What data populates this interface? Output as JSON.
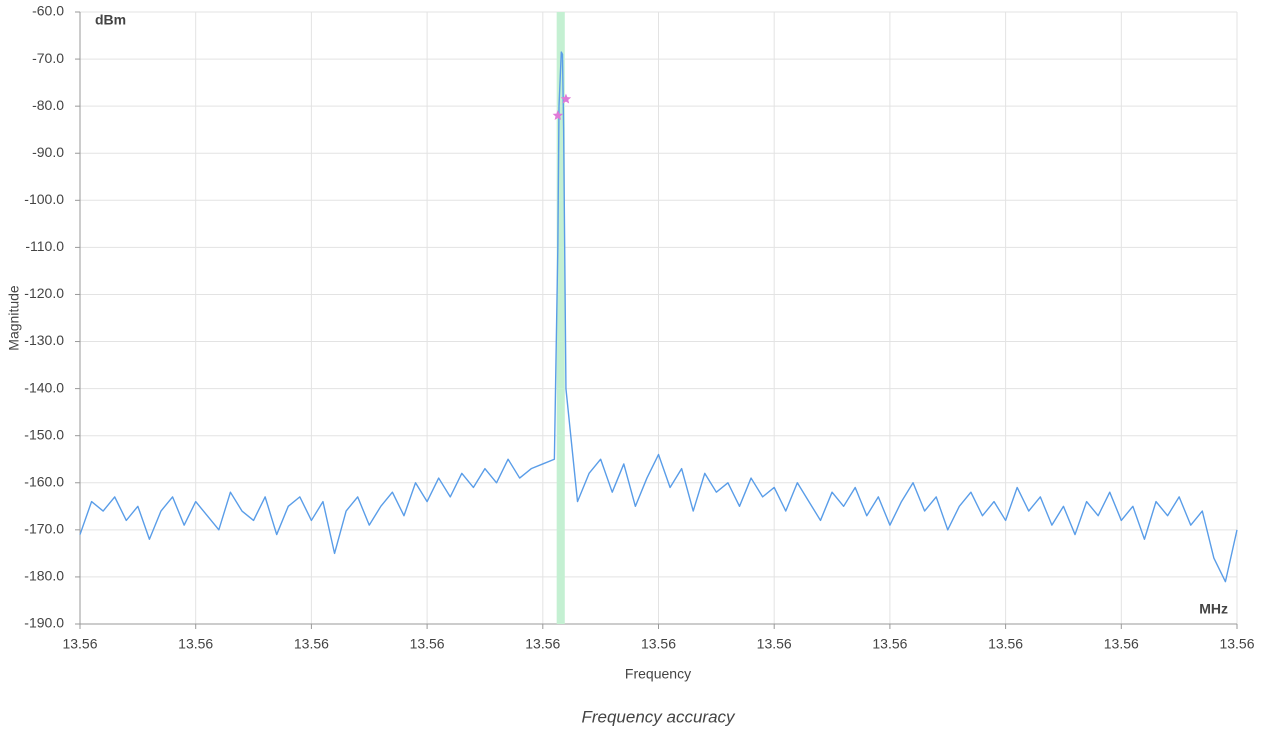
{
  "chart_data": {
    "type": "line",
    "title": "Frequency accuracy",
    "x_label": "Frequency",
    "y_label": "Magnitude",
    "x_unit": "MHz",
    "y_unit": "dBm",
    "color": "#5a9de8",
    "grid": true,
    "xlim": [
      13.5595,
      13.5605
    ],
    "ylim": [
      -190,
      -60
    ],
    "xticks": [
      {
        "value": 13.5595,
        "label": "13.56"
      },
      {
        "value": 13.5596,
        "label": "13.56"
      },
      {
        "value": 13.5597,
        "label": "13.56"
      },
      {
        "value": 13.5598,
        "label": "13.56"
      },
      {
        "value": 13.5599,
        "label": "13.56"
      },
      {
        "value": 13.56,
        "label": "13.56"
      },
      {
        "value": 13.5601,
        "label": "13.56"
      },
      {
        "value": 13.5602,
        "label": "13.56"
      },
      {
        "value": 13.5603,
        "label": "13.56"
      },
      {
        "value": 13.5604,
        "label": "13.56"
      },
      {
        "value": 13.5605,
        "label": "13.56"
      }
    ],
    "yticks": [
      {
        "value": -190,
        "label": "-190.0"
      },
      {
        "value": -180,
        "label": "-180.0"
      },
      {
        "value": -170,
        "label": "-170.0"
      },
      {
        "value": -160,
        "label": "-160.0"
      },
      {
        "value": -150,
        "label": "-150.0"
      },
      {
        "value": -140,
        "label": "-140.0"
      },
      {
        "value": -130,
        "label": "-130.0"
      },
      {
        "value": -120,
        "label": "-120.0"
      },
      {
        "value": -110,
        "label": "-110.0"
      },
      {
        "value": -100,
        "label": "-100.0"
      },
      {
        "value": -90,
        "label": "-90.0"
      },
      {
        "value": -80,
        "label": "-80.0"
      },
      {
        "value": -70,
        "label": "-70.0"
      },
      {
        "value": -60,
        "label": "-60.0"
      }
    ],
    "x": [
      13.5595,
      13.55951,
      13.55952,
      13.55953,
      13.55954,
      13.55955,
      13.55956,
      13.55957,
      13.55958,
      13.55959,
      13.5596,
      13.55961,
      13.55962,
      13.55963,
      13.55964,
      13.55965,
      13.55966,
      13.55967,
      13.55968,
      13.55969,
      13.5597,
      13.55971,
      13.55972,
      13.55973,
      13.55974,
      13.55975,
      13.55976,
      13.55977,
      13.55978,
      13.55979,
      13.5598,
      13.55981,
      13.55982,
      13.55983,
      13.55984,
      13.55985,
      13.55986,
      13.55987,
      13.55988,
      13.55989,
      13.5599,
      13.55991,
      13.559913,
      13.559914,
      13.559916,
      13.559917,
      13.559918,
      13.55992,
      13.55993,
      13.55994,
      13.55995,
      13.55996,
      13.55997,
      13.55998,
      13.55999,
      13.56,
      13.56001,
      13.56002,
      13.56003,
      13.56004,
      13.56005,
      13.56006,
      13.56007,
      13.56008,
      13.56009,
      13.5601,
      13.56011,
      13.56012,
      13.56013,
      13.56014,
      13.56015,
      13.56016,
      13.56017,
      13.56018,
      13.56019,
      13.5602,
      13.56021,
      13.56022,
      13.56023,
      13.56024,
      13.56025,
      13.56026,
      13.56027,
      13.56028,
      13.56029,
      13.5603,
      13.56031,
      13.56032,
      13.56033,
      13.56034,
      13.56035,
      13.56036,
      13.56037,
      13.56038,
      13.56039,
      13.5604,
      13.56041,
      13.56042,
      13.56043,
      13.56044,
      13.56045,
      13.56046,
      13.56047,
      13.56048,
      13.56049,
      13.5605
    ],
    "values": [
      -171,
      -164,
      -166,
      -163,
      -168,
      -165,
      -172,
      -166,
      -163,
      -169,
      -164,
      -167,
      -170,
      -162,
      -166,
      -168,
      -163,
      -171,
      -165,
      -163,
      -168,
      -164,
      -175,
      -166,
      -163,
      -169,
      -165,
      -162,
      -167,
      -160,
      -164,
      -159,
      -163,
      -158,
      -161,
      -157,
      -160,
      -155,
      -159,
      -157,
      -156,
      -155,
      -110,
      -80,
      -68.5,
      -69,
      -85,
      -140,
      -164,
      -158,
      -155,
      -162,
      -156,
      -165,
      -159,
      -154,
      -161,
      -157,
      -166,
      -158,
      -162,
      -160,
      -165,
      -159,
      -163,
      -161,
      -166,
      -160,
      -164,
      -168,
      -162,
      -165,
      -161,
      -167,
      -163,
      -169,
      -164,
      -160,
      -166,
      -163,
      -170,
      -165,
      -162,
      -167,
      -164,
      -168,
      -161,
      -166,
      -163,
      -169,
      -165,
      -171,
      -164,
      -167,
      -162,
      -168,
      -165,
      -172,
      -164,
      -167,
      -163,
      -169,
      -166,
      -176,
      -181,
      -170
    ],
    "markers": {
      "x": [
        13.559913,
        13.55992
      ],
      "values": [
        -82,
        -78.5
      ],
      "color": "#e07ad8"
    },
    "highlight": {
      "xlim": [
        13.559912,
        13.559919
      ],
      "color": "#c4f0d2"
    }
  }
}
